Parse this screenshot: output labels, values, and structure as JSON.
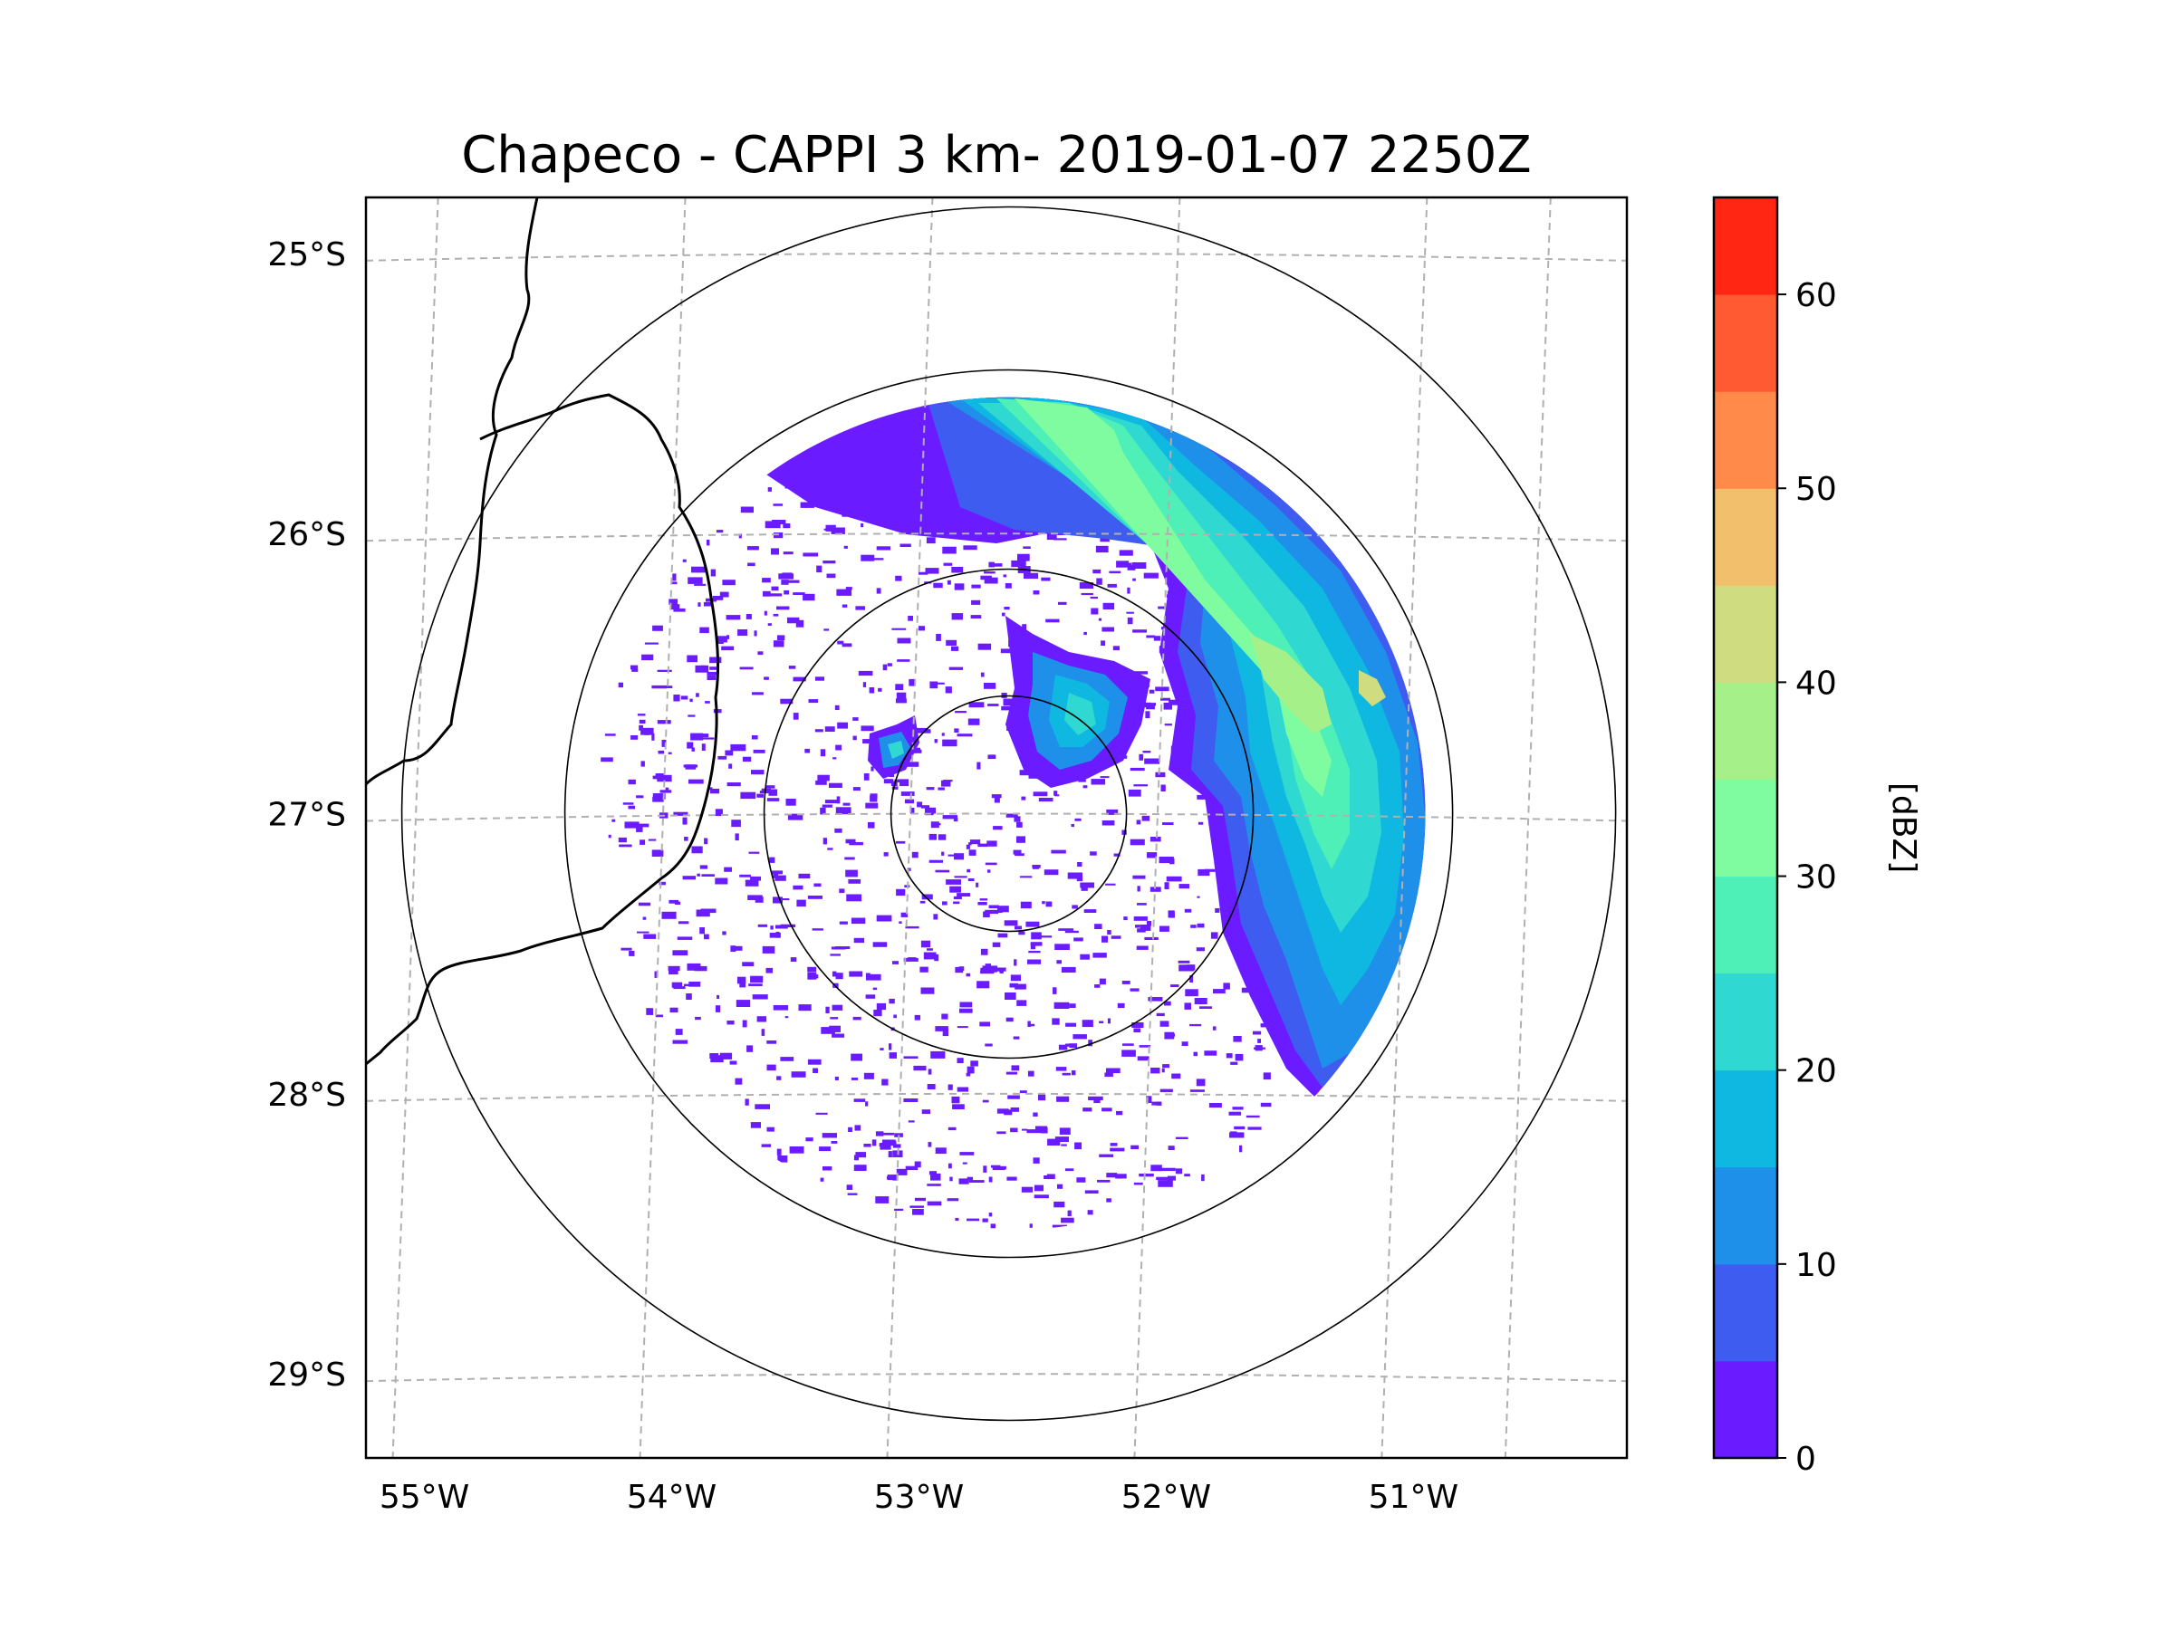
{
  "chart_data": {
    "type": "heatmap",
    "title": "Chapeco - CAPPI 3 km- 2019-01-07 2250Z",
    "radar": "Chapeco",
    "product": "CAPPI 3 km",
    "datetime": "2019-01-07 2250Z",
    "lat_ticks": [
      "25°S",
      "26°S",
      "27°S",
      "28°S",
      "29°S"
    ],
    "lat_values": [
      -25,
      -26,
      -27,
      -28,
      -29
    ],
    "lon_ticks": [
      "55°W",
      "54°W",
      "53°W",
      "52°W",
      "51°W"
    ],
    "lon_values": [
      -55,
      -54,
      -53,
      -52,
      -51
    ],
    "lon_range": [
      -55.2,
      -50.1
    ],
    "lat_range": [
      -29.3,
      -24.8
    ],
    "radar_center": {
      "lon": -52.6,
      "lat": -27.0
    },
    "range_rings_km": [
      50,
      100,
      150,
      200
    ],
    "grid": true,
    "colorbar": {
      "label": "[dBZ]",
      "min": 0,
      "max": 65,
      "ticks": [
        "0",
        "10",
        "20",
        "30",
        "40",
        "50",
        "60"
      ],
      "tick_values": [
        0,
        10,
        20,
        30,
        40,
        50,
        60
      ],
      "levels": [
        0,
        5,
        10,
        15,
        20,
        25,
        30,
        35,
        40,
        45,
        50,
        55,
        60,
        65
      ],
      "colors": [
        "#6a1bff",
        "#3f5cf0",
        "#1e90ea",
        "#0fb8e0",
        "#2fd8d0",
        "#4ef0b8",
        "#80fca0",
        "#a6f08a",
        "#cfdc80",
        "#f2c06c",
        "#ff8a4a",
        "#ff5a32",
        "#ff2614"
      ]
    },
    "echo_description": "Strong precipitation band (20-45 dBZ) in north-east quadrant; scattered weak echoes (0-5 dBZ) elsewhere"
  }
}
